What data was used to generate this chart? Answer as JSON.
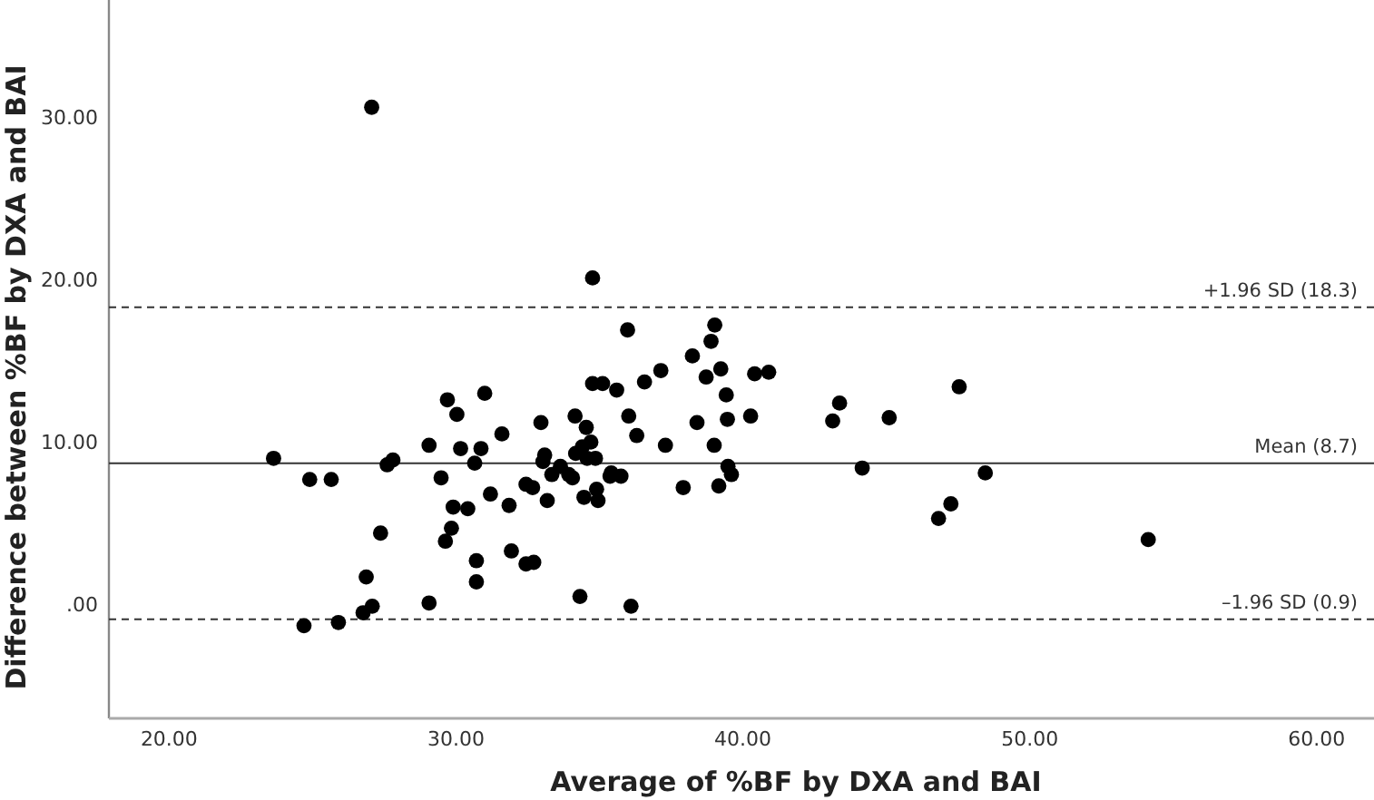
{
  "chart_data": {
    "type": "scatter",
    "xlabel": "Average of %BF by DXA and BAI",
    "ylabel": "Difference between %BF by DXA and BAI",
    "xlim": [
      17.9,
      62
    ],
    "ylim": [
      -7,
      37.2
    ],
    "xticks": [
      {
        "value": 20,
        "label": "20.00"
      },
      {
        "value": 30,
        "label": "30.00"
      },
      {
        "value": 40,
        "label": "40.00"
      },
      {
        "value": 50,
        "label": "50.00"
      },
      {
        "value": 60,
        "label": "60.00"
      }
    ],
    "yticks": [
      {
        "value": 0,
        "label": ".00"
      },
      {
        "value": 10,
        "label": "10.00"
      },
      {
        "value": 20,
        "label": "20.00"
      },
      {
        "value": 30,
        "label": "30.00"
      }
    ],
    "grid": false,
    "marker": "circle",
    "series": [
      {
        "color": "#000000",
        "x": [
          27.06,
          34.76,
          35.98,
          37.14,
          38.24,
          34.76,
          35.11,
          35.6,
          36.57,
          29.7,
          31.0,
          23.64,
          24.9,
          25.65,
          24.7,
          25.9,
          26.76,
          27.08,
          26.87,
          27.37,
          27.6,
          27.8,
          29.06,
          29.06,
          29.48,
          30.03,
          30.16,
          29.63,
          29.84,
          29.9,
          30.41,
          30.65,
          30.87,
          30.71,
          30.71,
          31.2,
          31.6,
          31.85,
          31.93,
          32.44,
          32.71,
          32.44,
          32.67,
          32.96,
          33.03,
          33.09,
          33.18,
          33.34,
          33.64,
          33.93,
          34.06,
          34.15,
          34.17,
          34.32,
          34.46,
          34.54,
          34.57,
          34.7,
          34.4,
          34.86,
          34.9,
          34.95,
          35.37,
          35.41,
          35.75,
          36.1,
          36.02,
          36.3,
          37.3,
          37.92,
          39.02,
          38.89,
          38.72,
          39.23,
          39.42,
          40.41,
          40.9,
          38.4,
          39.46,
          40.27,
          39.0,
          39.48,
          39.6,
          39.16,
          43.13,
          43.37,
          44.16,
          45.1,
          47.54,
          48.45,
          46.82,
          47.25,
          54.13
        ],
        "values": [
          30.6,
          20.1,
          16.9,
          14.4,
          15.3,
          13.6,
          13.6,
          13.2,
          13.7,
          12.6,
          13.0,
          9.0,
          7.7,
          7.7,
          -1.3,
          -1.1,
          -0.5,
          -0.1,
          1.7,
          4.4,
          8.6,
          8.9,
          9.8,
          0.1,
          7.8,
          11.7,
          9.6,
          3.9,
          4.7,
          6.0,
          5.9,
          8.7,
          9.6,
          2.7,
          1.4,
          6.8,
          10.5,
          6.1,
          3.3,
          2.5,
          2.6,
          7.4,
          7.2,
          11.2,
          8.8,
          9.2,
          6.4,
          8.0,
          8.5,
          8.0,
          7.8,
          11.6,
          9.3,
          0.5,
          6.6,
          10.9,
          9.0,
          10.0,
          9.7,
          9.0,
          7.1,
          6.4,
          7.9,
          8.1,
          7.9,
          -0.1,
          11.6,
          10.4,
          9.8,
          7.2,
          17.2,
          16.2,
          14.0,
          14.5,
          12.9,
          14.2,
          14.3,
          11.2,
          11.4,
          11.6,
          9.8,
          8.5,
          8.0,
          7.3,
          11.3,
          12.4,
          8.4,
          11.5,
          13.4,
          8.1,
          5.3,
          6.2,
          4.0
        ]
      }
    ],
    "ref_lines": [
      {
        "axis": "y",
        "value": 18.3,
        "label": "+1.96 SD (18.3)",
        "line_style": "dashed"
      },
      {
        "axis": "y",
        "value": 8.7,
        "label": "Mean (8.7)",
        "line_style": "solid"
      },
      {
        "axis": "y",
        "value": -0.9,
        "label": "–1.96 SD (0.9)",
        "line_style": "dashed"
      }
    ]
  }
}
